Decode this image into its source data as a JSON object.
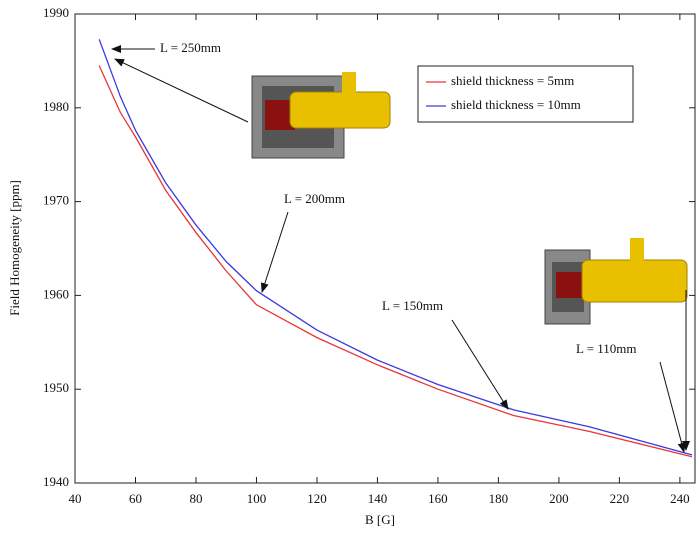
{
  "chart_data": {
    "type": "line",
    "xlabel": "B [G]",
    "ylabel": "Field Homogeneity [ppm]",
    "x": [
      48,
      55,
      60,
      70,
      80,
      90,
      100,
      120,
      140,
      160,
      185,
      210,
      244
    ],
    "series": [
      {
        "name": "shield thickness = 5mm",
        "color": "#e8363a",
        "values": [
          1984.5,
          1979.5,
          1976.9,
          1971.2,
          1966.7,
          1962.6,
          1959,
          1955.5,
          1952.6,
          1950,
          1947.2,
          1945.5,
          1942.8
        ]
      },
      {
        "name": "shield thickness = 10mm",
        "color": "#3a3ae0",
        "values": [
          1987.3,
          1981.2,
          1977.6,
          1972,
          1967.5,
          1963.6,
          1960.5,
          1956.3,
          1953.1,
          1950.5,
          1947.8,
          1946,
          1943
        ]
      }
    ],
    "xlim": [
      40,
      245
    ],
    "ylim": [
      1940,
      1990
    ],
    "xticks": [
      40,
      60,
      80,
      100,
      120,
      140,
      160,
      180,
      200,
      220,
      240
    ],
    "yticks": [
      1940,
      1950,
      1960,
      1970,
      1980,
      1990
    ],
    "grid": false,
    "annotations": [
      "L = 250mm",
      "L = 200mm",
      "L = 150mm",
      "L = 110mm"
    ]
  }
}
